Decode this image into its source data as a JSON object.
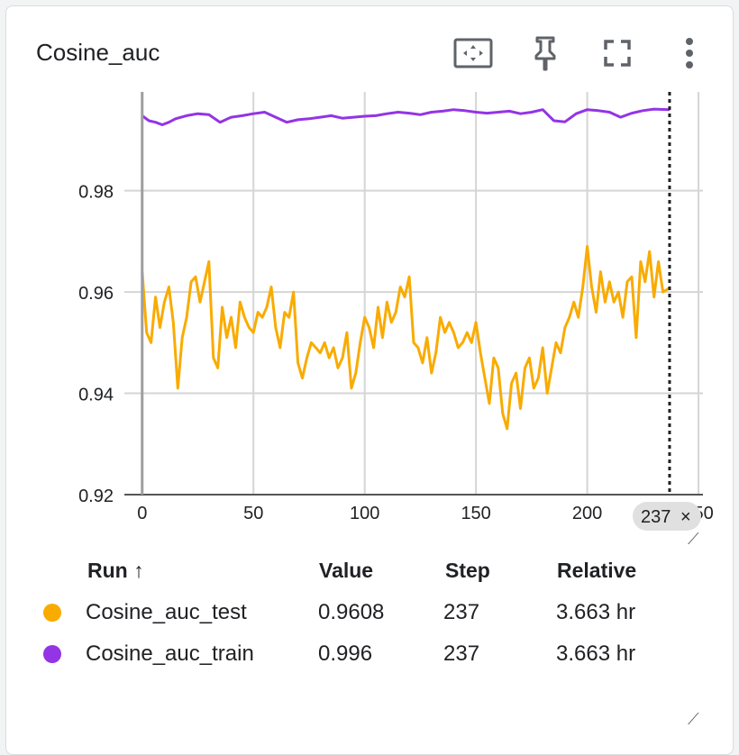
{
  "card": {
    "title": "Cosine_auc"
  },
  "toolbar": [
    {
      "name": "fit-domain-icon"
    },
    {
      "name": "pin-icon"
    },
    {
      "name": "fullscreen-icon"
    },
    {
      "name": "more-vert-icon"
    }
  ],
  "chart_data": {
    "type": "line",
    "title": "Cosine_auc",
    "xlabel": "",
    "ylabel": "",
    "xlim": [
      -8,
      252
    ],
    "ylim": [
      0.92,
      0.9995
    ],
    "x_ticks": [
      "0",
      "50",
      "100",
      "150",
      "200",
      "250"
    ],
    "y_ticks": [
      "0.92",
      "0.94",
      "0.96",
      "0.98"
    ],
    "grid": true,
    "cursor_step": 237,
    "cursor_label": "237",
    "cursor_close": "×",
    "series": [
      {
        "name": "Cosine_auc_train",
        "color": "#9334e6",
        "x": [
          0,
          3,
          6,
          9,
          12,
          15,
          20,
          25,
          30,
          35,
          40,
          45,
          50,
          55,
          60,
          65,
          70,
          75,
          80,
          85,
          90,
          95,
          100,
          105,
          110,
          115,
          120,
          125,
          130,
          135,
          140,
          145,
          150,
          155,
          160,
          165,
          170,
          175,
          180,
          185,
          190,
          195,
          200,
          205,
          210,
          215,
          220,
          225,
          230,
          237
        ],
        "y": [
          0.9948,
          0.9938,
          0.9935,
          0.993,
          0.9935,
          0.9942,
          0.9948,
          0.9952,
          0.995,
          0.9935,
          0.9945,
          0.9948,
          0.9952,
          0.9955,
          0.9945,
          0.9935,
          0.994,
          0.9942,
          0.9945,
          0.9948,
          0.9943,
          0.9945,
          0.9947,
          0.9948,
          0.9952,
          0.9955,
          0.9953,
          0.995,
          0.9955,
          0.9957,
          0.996,
          0.9958,
          0.9955,
          0.9953,
          0.9955,
          0.9957,
          0.9952,
          0.9955,
          0.996,
          0.9938,
          0.9936,
          0.9952,
          0.996,
          0.9958,
          0.9955,
          0.9945,
          0.9953,
          0.9958,
          0.9961,
          0.996
        ]
      },
      {
        "name": "Cosine_auc_test",
        "color": "#f9ab00",
        "x": [
          0,
          2,
          4,
          6,
          8,
          10,
          12,
          14,
          16,
          18,
          20,
          22,
          24,
          26,
          28,
          30,
          32,
          34,
          36,
          38,
          40,
          42,
          44,
          46,
          48,
          50,
          52,
          54,
          56,
          58,
          60,
          62,
          64,
          66,
          68,
          70,
          72,
          74,
          76,
          78,
          80,
          82,
          84,
          86,
          88,
          90,
          92,
          94,
          96,
          98,
          100,
          102,
          104,
          106,
          108,
          110,
          112,
          114,
          116,
          118,
          120,
          122,
          124,
          126,
          128,
          130,
          132,
          134,
          136,
          138,
          140,
          142,
          144,
          146,
          148,
          150,
          152,
          154,
          156,
          158,
          160,
          162,
          164,
          166,
          168,
          170,
          172,
          174,
          176,
          178,
          180,
          182,
          184,
          186,
          188,
          190,
          192,
          194,
          196,
          198,
          200,
          202,
          204,
          206,
          208,
          210,
          212,
          214,
          216,
          218,
          220,
          222,
          224,
          226,
          228,
          230,
          232,
          234,
          237
        ],
        "y": [
          0.964,
          0.952,
          0.95,
          0.959,
          0.953,
          0.958,
          0.961,
          0.954,
          0.941,
          0.951,
          0.955,
          0.962,
          0.963,
          0.958,
          0.962,
          0.966,
          0.947,
          0.945,
          0.957,
          0.951,
          0.955,
          0.949,
          0.958,
          0.955,
          0.953,
          0.952,
          0.956,
          0.955,
          0.957,
          0.961,
          0.953,
          0.949,
          0.956,
          0.955,
          0.96,
          0.946,
          0.943,
          0.947,
          0.95,
          0.949,
          0.948,
          0.95,
          0.947,
          0.949,
          0.945,
          0.947,
          0.952,
          0.941,
          0.944,
          0.95,
          0.955,
          0.953,
          0.949,
          0.957,
          0.951,
          0.958,
          0.954,
          0.956,
          0.961,
          0.959,
          0.963,
          0.95,
          0.949,
          0.946,
          0.951,
          0.944,
          0.948,
          0.955,
          0.952,
          0.954,
          0.952,
          0.949,
          0.95,
          0.952,
          0.95,
          0.954,
          0.948,
          0.943,
          0.938,
          0.947,
          0.945,
          0.936,
          0.933,
          0.942,
          0.944,
          0.937,
          0.945,
          0.947,
          0.941,
          0.943,
          0.949,
          0.94,
          0.945,
          0.95,
          0.948,
          0.953,
          0.955,
          0.958,
          0.955,
          0.961,
          0.969,
          0.961,
          0.956,
          0.964,
          0.958,
          0.962,
          0.958,
          0.96,
          0.955,
          0.962,
          0.963,
          0.951,
          0.966,
          0.962,
          0.968,
          0.959,
          0.966,
          0.96,
          0.9608
        ]
      }
    ]
  },
  "table": {
    "headers": {
      "run": "Run",
      "sort": "↑",
      "value": "Value",
      "step": "Step",
      "relative": "Relative"
    },
    "rows": [
      {
        "run": "Cosine_auc_test",
        "color": "#f9ab00",
        "value": "0.9608",
        "step": "237",
        "relative": "3.663 hr"
      },
      {
        "run": "Cosine_auc_train",
        "color": "#9334e6",
        "value": "0.996",
        "step": "237",
        "relative": "3.663 hr"
      }
    ]
  }
}
